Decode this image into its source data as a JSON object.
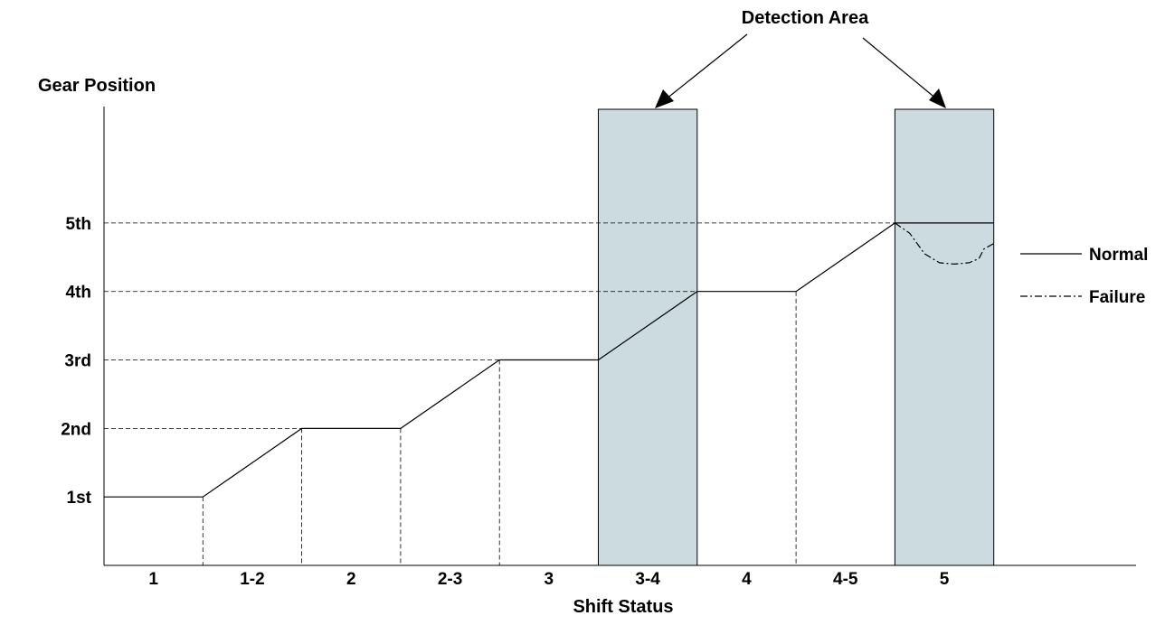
{
  "chart_data": {
    "type": "line",
    "title": "",
    "annotation": "Detection Area",
    "xlabel": "Shift Status",
    "ylabel": "Gear Position",
    "categories": [
      "1",
      "1-2",
      "2",
      "2-3",
      "3",
      "3-4",
      "4",
      "4-5",
      "5"
    ],
    "y_tick_labels": [
      "1st",
      "2nd",
      "3rd",
      "4th",
      "5th"
    ],
    "ylim": [
      0,
      6.7
    ],
    "grid": "dashed reference lines at each gear level and at shift boundaries",
    "legend_position": "right",
    "detection_areas": [
      "3-4",
      "5"
    ],
    "series": [
      {
        "name": "Normal",
        "style": "solid",
        "points": [
          [
            0,
            1
          ],
          [
            1,
            1
          ],
          [
            2,
            2
          ],
          [
            3,
            2
          ],
          [
            4,
            3
          ],
          [
            5,
            3
          ],
          [
            6,
            4
          ],
          [
            7,
            4
          ],
          [
            8,
            5
          ],
          [
            9,
            5
          ]
        ]
      },
      {
        "name": "Failure",
        "style": "dash-dot",
        "points": [
          [
            8,
            5
          ],
          [
            8.15,
            4.85
          ],
          [
            8.3,
            4.55
          ],
          [
            8.45,
            4.42
          ],
          [
            8.6,
            4.4
          ],
          [
            8.75,
            4.42
          ],
          [
            8.85,
            4.48
          ],
          [
            8.9,
            4.62
          ],
          [
            9.0,
            4.7
          ]
        ]
      }
    ],
    "colors": {
      "detection_fill": "#ccdbe0",
      "line": "#000000"
    }
  }
}
